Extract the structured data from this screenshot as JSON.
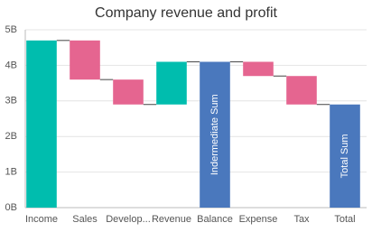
{
  "chart_data": {
    "type": "waterfall",
    "title": "Company revenue and profit",
    "categories": [
      "Income",
      "Sales",
      "Develop...",
      "Revenue",
      "Balance",
      "Expense",
      "Tax",
      "Total"
    ],
    "values": [
      4.7,
      -1.1,
      -0.7,
      1.2,
      4.1,
      -0.4,
      -0.8,
      2.9
    ],
    "sum_labels": [
      null,
      null,
      null,
      null,
      "Indermediate Sum",
      null,
      null,
      "Total Sum"
    ],
    "colors": {
      "positive": "#00bdae",
      "negative": "#e56590",
      "sum": "#4a78bd"
    },
    "ylim": [
      0,
      5
    ],
    "yticks": [
      {
        "value": 0,
        "label": "0B"
      },
      {
        "value": 1,
        "label": "1B"
      },
      {
        "value": 2,
        "label": "2B"
      },
      {
        "value": 3,
        "label": "3B"
      },
      {
        "value": 4,
        "label": "4B"
      },
      {
        "value": 5,
        "label": "5B"
      }
    ],
    "grid": true
  }
}
